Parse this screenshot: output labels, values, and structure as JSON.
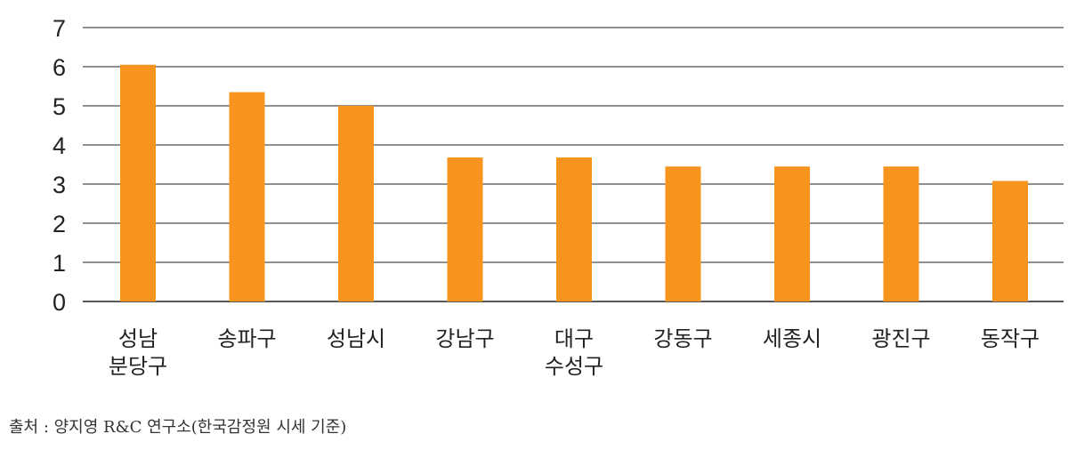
{
  "chart_data": {
    "type": "bar",
    "categories": [
      [
        "성남",
        "분당구"
      ],
      [
        "송파구"
      ],
      [
        "성남시"
      ],
      [
        "강남구"
      ],
      [
        "대구",
        "수성구"
      ],
      [
        "강동구"
      ],
      [
        "세종시"
      ],
      [
        "광진구"
      ],
      [
        "동작구"
      ]
    ],
    "values": [
      6.05,
      5.35,
      5.0,
      3.68,
      3.68,
      3.45,
      3.45,
      3.45,
      3.08
    ],
    "ylim": [
      0,
      7
    ],
    "yticks": [
      "0",
      "1",
      "2",
      "3",
      "4",
      "5",
      "6",
      "7"
    ],
    "grid": true,
    "bar_color": "#F7941D",
    "grid_color": "#222222"
  },
  "source": "출처 : 양지영 R&C 연구소(한국감정원 시세 기준)"
}
